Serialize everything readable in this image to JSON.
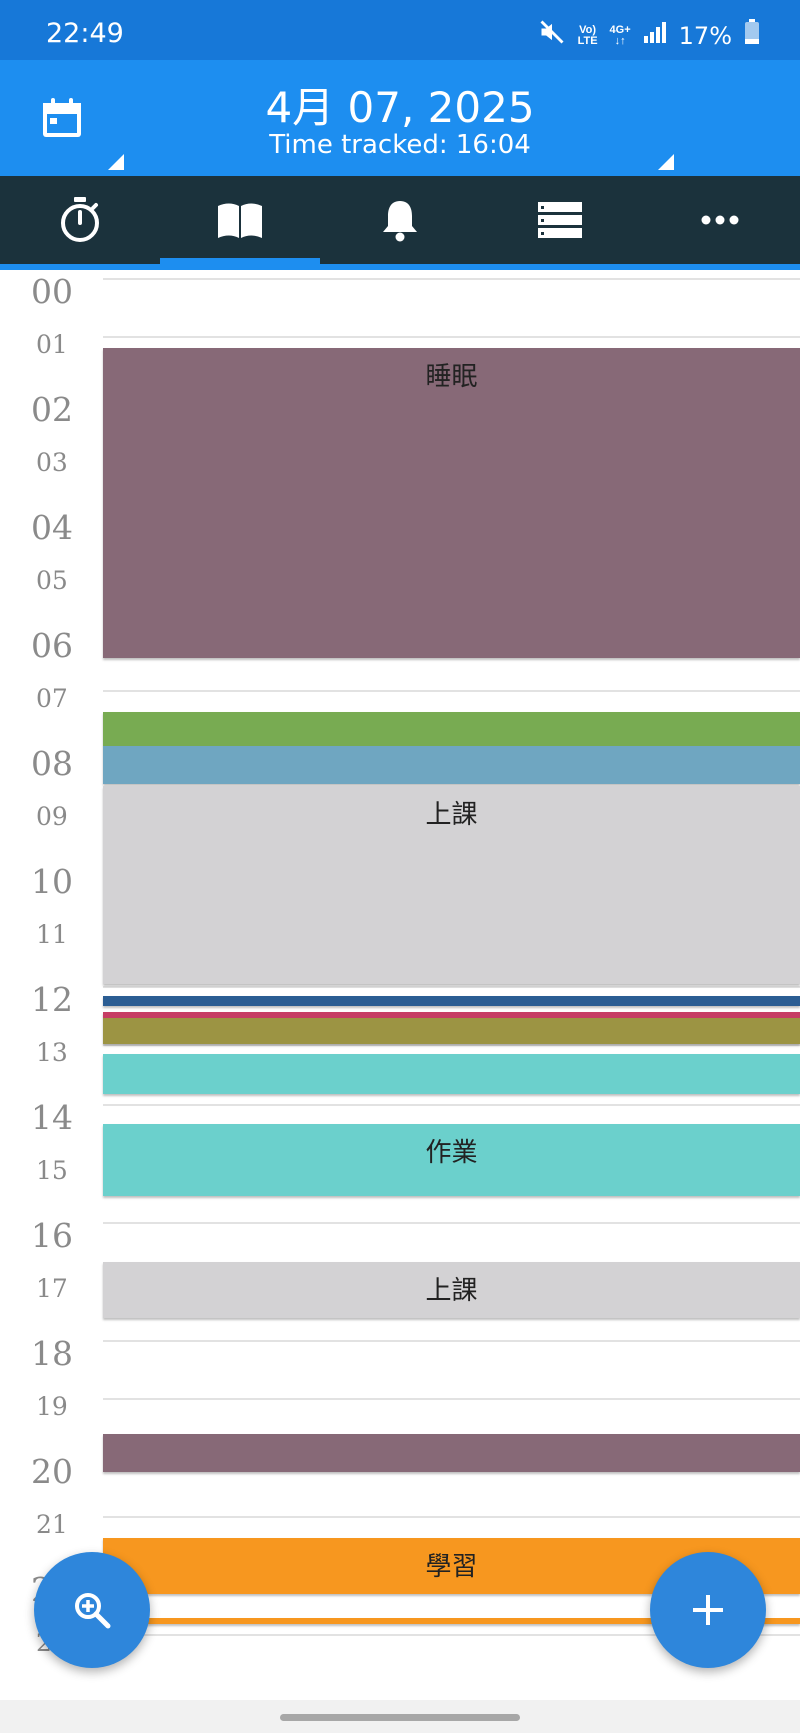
{
  "status_bar": {
    "time": "22:49",
    "network_top": "Vo)",
    "network_bottom": "LTE",
    "signal_top": "4G+",
    "battery": "17%"
  },
  "header": {
    "date": "4月 07, 2025",
    "tracked": "Time tracked: 16:04"
  },
  "tabs": [
    {
      "icon": "stopwatch-icon"
    },
    {
      "icon": "book-icon",
      "active": true
    },
    {
      "icon": "bell-icon"
    },
    {
      "icon": "list-icon"
    },
    {
      "icon": "more-icon"
    }
  ],
  "hours": [
    "00",
    "01",
    "02",
    "03",
    "04",
    "05",
    "06",
    "07",
    "08",
    "09",
    "10",
    "11",
    "12",
    "13",
    "14",
    "15",
    "16",
    "17",
    "18",
    "19",
    "20",
    "21",
    "22",
    "23"
  ],
  "activities": [
    {
      "label": "睡眠",
      "color": "#876977"
    },
    {
      "label": "",
      "color": "#78ab52"
    },
    {
      "label": "",
      "color": "#6fa6c1"
    },
    {
      "label": "上課",
      "color": "#d3d2d4"
    },
    {
      "label": "",
      "color": "#2b5d93"
    },
    {
      "label": "",
      "color": "#c63d64"
    },
    {
      "label": "",
      "color": "#9c9443"
    },
    {
      "label": "",
      "color": "#6bd0cc"
    },
    {
      "label": "作業",
      "color": "#6bd0cc"
    },
    {
      "label": "上課",
      "color": "#d3d2d4"
    },
    {
      "label": "",
      "color": "#876977"
    },
    {
      "label": "學習",
      "color": "#f7971f"
    },
    {
      "label": "",
      "color": "#f7971f"
    }
  ],
  "fab": {
    "zoom_icon": "zoom-in-icon",
    "add_icon": "plus-icon"
  }
}
